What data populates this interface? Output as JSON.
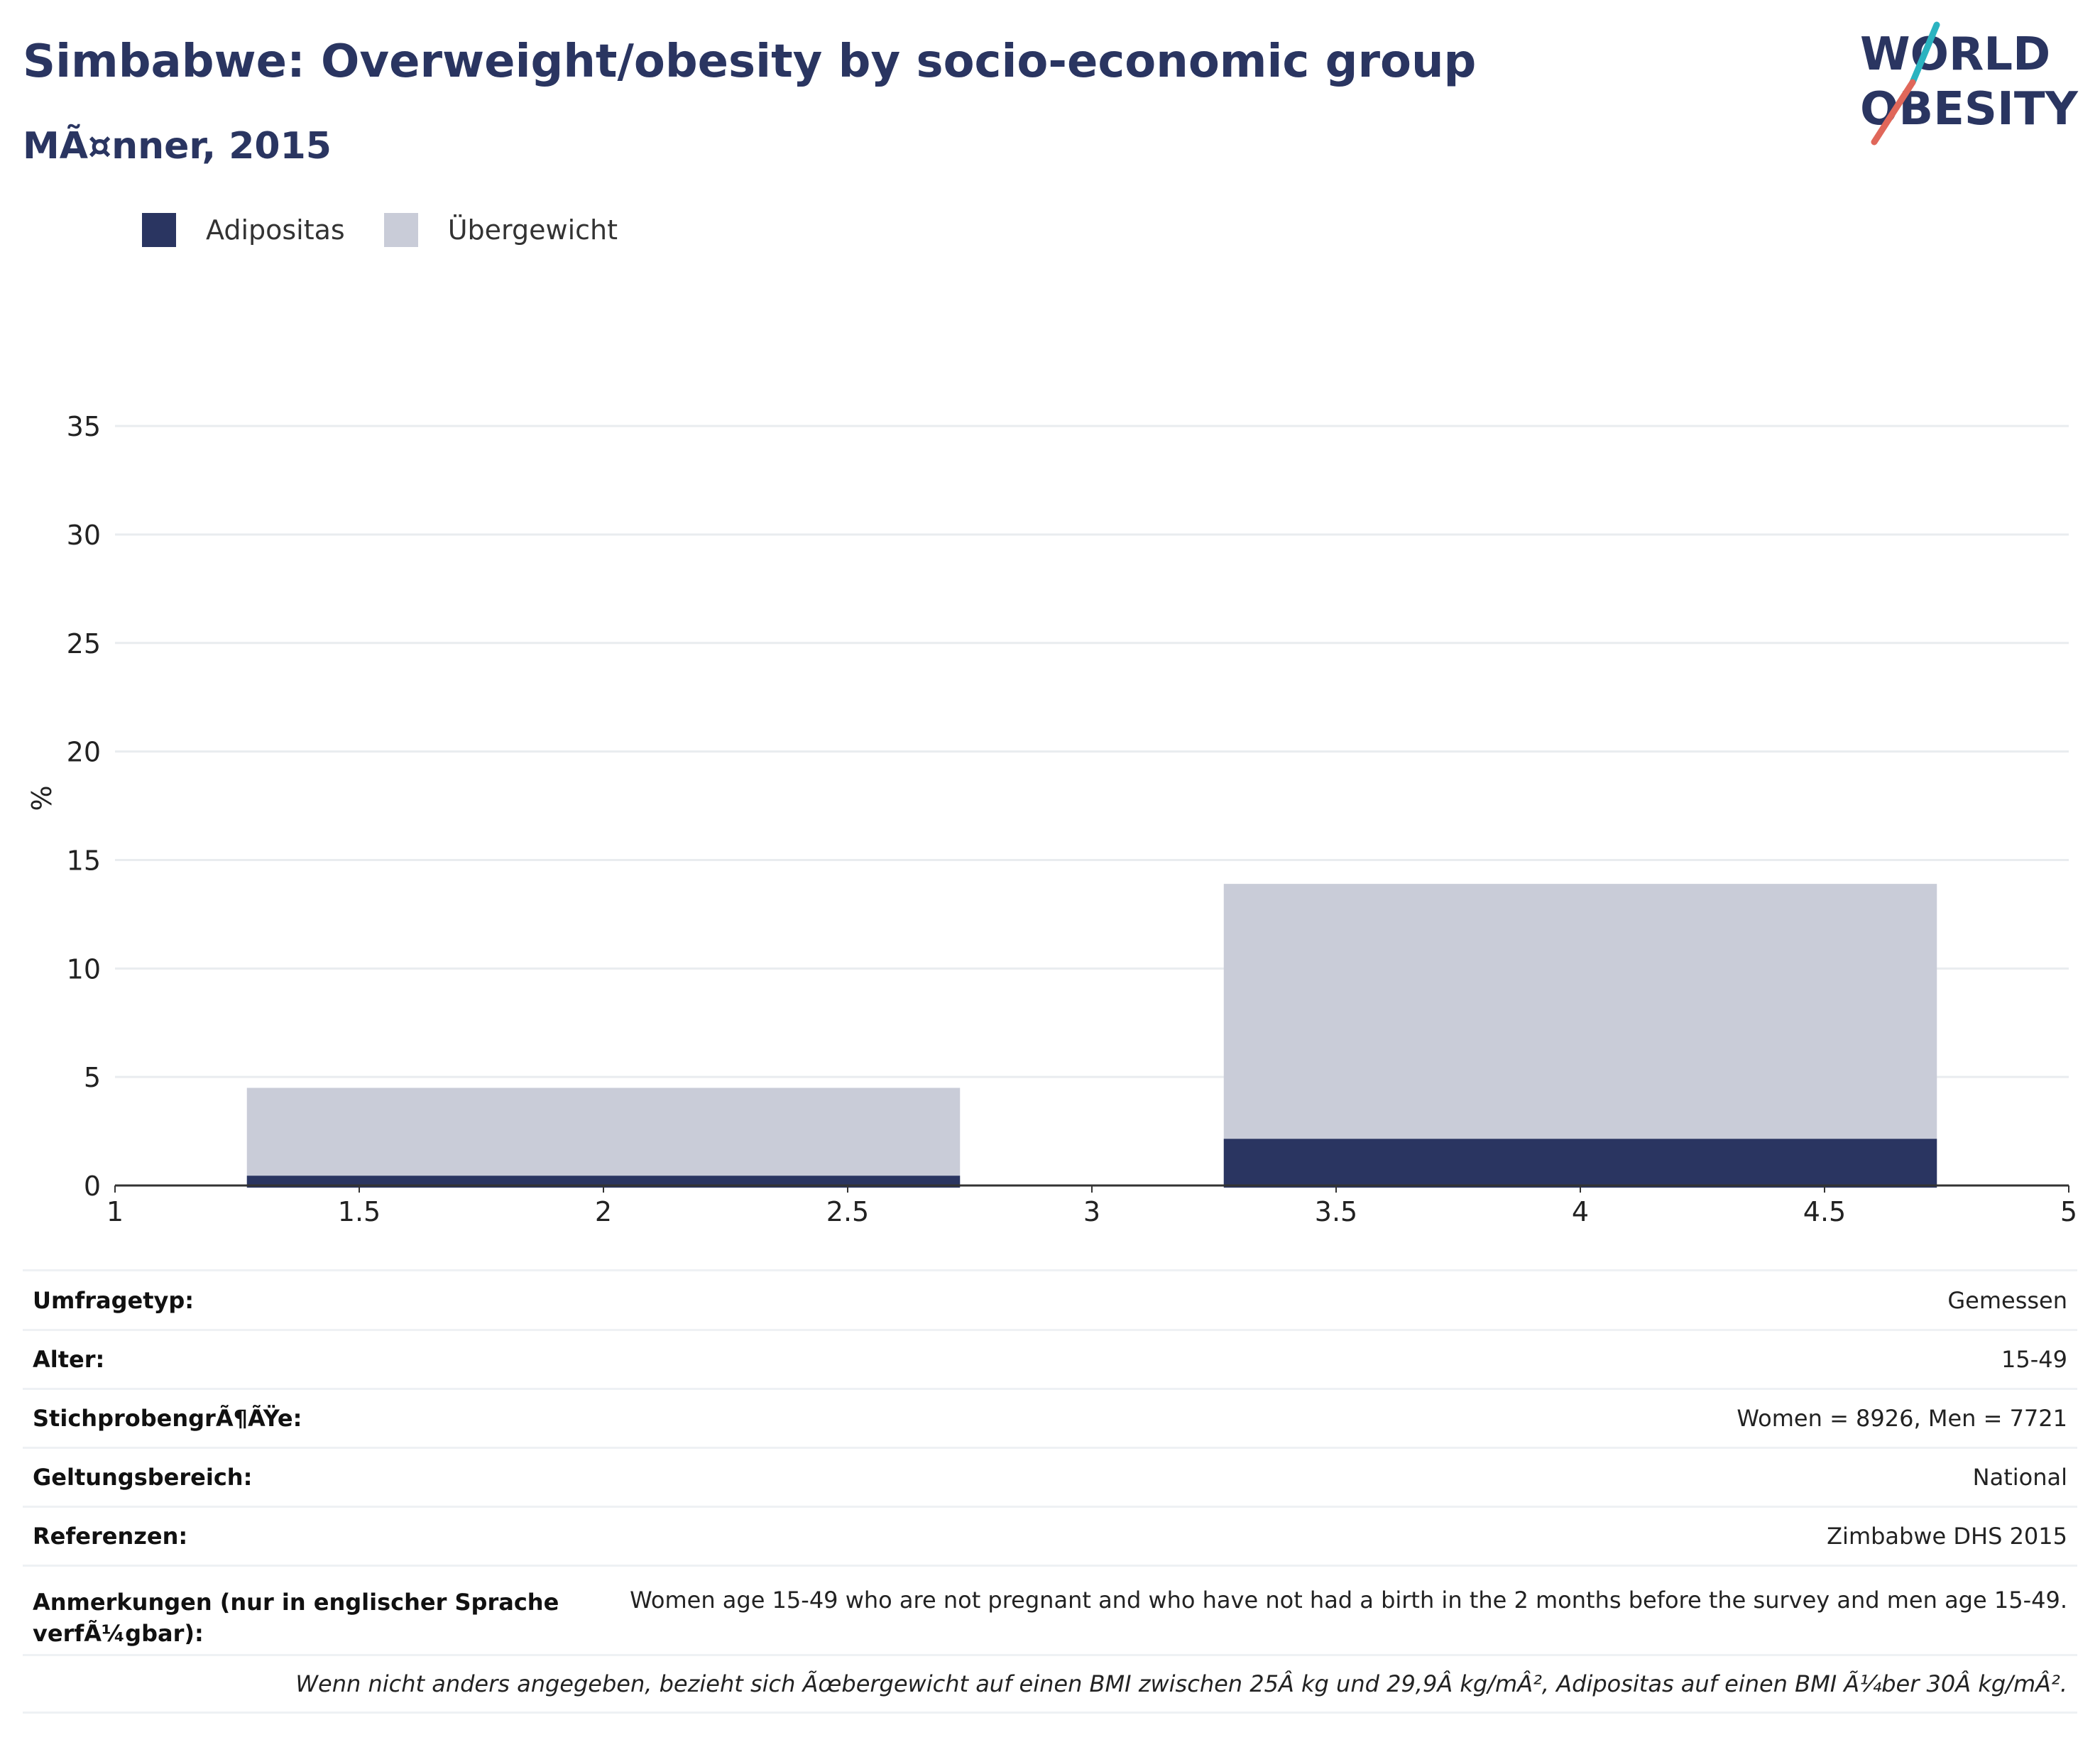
{
  "header": {
    "title": "Simbabwe: Overweight/obesity by socio-economic group",
    "subtitle": "MÃ¤nner, 2015"
  },
  "logo": {
    "line1": "WORLD",
    "line2": "OBESITY"
  },
  "colors": {
    "obesity": "#2a3561",
    "overweight": "#c9ccd8",
    "axis": "#333333",
    "grid": "#e9ecef"
  },
  "legend": [
    {
      "label": "Adipositas",
      "color": "#2a3561"
    },
    {
      "label": "Übergewicht",
      "color": "#c9ccd8"
    }
  ],
  "chart_data": {
    "type": "bar",
    "stacked": true,
    "ylabel": "%",
    "xlim": [
      1,
      5
    ],
    "ylim": [
      0,
      37
    ],
    "xticks": [
      1,
      1.5,
      2,
      2.5,
      3,
      3.5,
      4,
      4.5,
      5
    ],
    "yticks": [
      0,
      5,
      10,
      15,
      20,
      25,
      30,
      35
    ],
    "grid": true,
    "legend_position": "top-left",
    "bars": [
      {
        "x": [
          1.27,
          2.73
        ],
        "obesity": 0.45,
        "overweight": 4.05,
        "total": 4.5
      },
      {
        "x": [
          3.27,
          4.73
        ],
        "obesity": 2.15,
        "overweight": 11.75,
        "total": 13.9
      }
    ],
    "series": [
      {
        "name": "Adipositas",
        "values": [
          0.45,
          2.15
        ]
      },
      {
        "name": "Übergewicht",
        "values": [
          4.05,
          11.75
        ]
      }
    ]
  },
  "info_table": [
    {
      "key": "Umfragetyp:",
      "value": "Gemessen"
    },
    {
      "key": "Alter:",
      "value": "15-49"
    },
    {
      "key": "StichprobengrÃ¶ÃŸe:",
      "value": "Women = 8926, Men = 7721"
    },
    {
      "key": "Geltungsbereich:",
      "value": "National"
    },
    {
      "key": "Referenzen:",
      "value": "Zimbabwe DHS 2015"
    },
    {
      "key": "Anmerkungen (nur in englischer Sprache verfÃ¼gbar):",
      "value": "Women age 15-49 who are not pregnant and who have not had a birth in the 2 months before the survey and men age 15-49."
    }
  ],
  "footnote": "Wenn nicht anders angegeben, bezieht sich Ãœbergewicht auf einen BMI zwischen 25Â kg und 29,9Â kg/mÂ², Adipositas auf einen BMI Ã¼ber 30Â kg/mÂ²."
}
